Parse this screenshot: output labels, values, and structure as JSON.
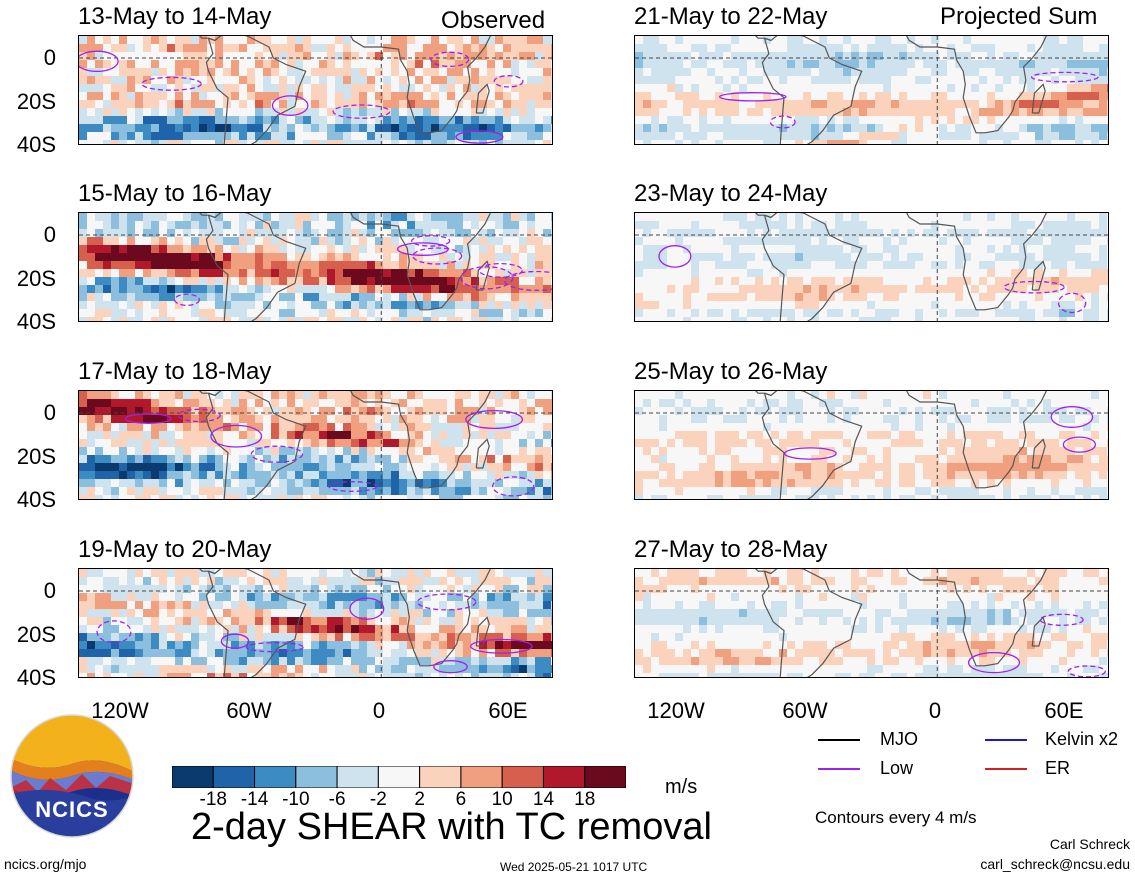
{
  "header": {
    "observed_label": "Observed",
    "projected_label": "Projected Sum"
  },
  "panels": {
    "observed": [
      {
        "title": "13-May to 14-May"
      },
      {
        "title": "15-May to 16-May"
      },
      {
        "title": "17-May to 18-May"
      },
      {
        "title": "19-May to 20-May"
      }
    ],
    "projected": [
      {
        "title": "21-May to 22-May"
      },
      {
        "title": "23-May to 24-May"
      },
      {
        "title": "25-May to 26-May"
      },
      {
        "title": "27-May to 28-May"
      }
    ]
  },
  "axes": {
    "y_ticks": [
      "0",
      "20S",
      "40S"
    ],
    "x_ticks": [
      "120W",
      "60W",
      "0",
      "60E"
    ]
  },
  "legend": {
    "items": [
      {
        "label": "MJO",
        "color": "#000000"
      },
      {
        "label": "Kelvin x2",
        "color": "#1a1ac8"
      },
      {
        "label": "Low",
        "color": "#a020f0"
      },
      {
        "label": "ER",
        "color": "#d02020"
      }
    ],
    "contour_note": "Contours every 4 m/s"
  },
  "colorbar": {
    "units": "m/s",
    "tick_labels": [
      "-18",
      "-14",
      "-10",
      "-6",
      "-2",
      "2",
      "6",
      "10",
      "14",
      "18"
    ],
    "colors": [
      "#0a3a6e",
      "#1f63a8",
      "#3c8cc3",
      "#8bbfdd",
      "#cfe3ef",
      "#f7f7f7",
      "#fbd2bc",
      "#f0a07e",
      "#d6604d",
      "#b2182b",
      "#6b0a1e"
    ]
  },
  "title": "2-day SHEAR with TC removal",
  "logo": {
    "text": "NCICS"
  },
  "footer": {
    "site": "ncics.org/mjo",
    "timestamp": "Wed 2025-05-21 1017 UTC",
    "author": "Carl Schreck",
    "email": "carl_schreck@ncsu.edu"
  },
  "chart_data": {
    "type": "heatmap",
    "variable": "2-day SHEAR with TC removal",
    "units": "m/s",
    "lat_ticks": [
      "0",
      "20S",
      "40S"
    ],
    "lon_ticks": [
      "120W",
      "60W",
      "0",
      "60E"
    ],
    "lon_range_deg": [
      -140,
      80
    ],
    "lat_range_deg": [
      -40,
      10
    ],
    "color_levels": [
      -18,
      -14,
      -10,
      -6,
      -2,
      2,
      6,
      10,
      14,
      18
    ],
    "contour_interval": 4,
    "observed_periods": [
      "13-May to 14-May",
      "15-May to 16-May",
      "17-May to 18-May",
      "19-May to 20-May"
    ],
    "projected_periods": [
      "21-May to 22-May",
      "23-May to 24-May",
      "25-May to 26-May",
      "27-May to 28-May"
    ],
    "contour_series": [
      "MJO",
      "Kelvin x2",
      "Low",
      "ER"
    ]
  }
}
